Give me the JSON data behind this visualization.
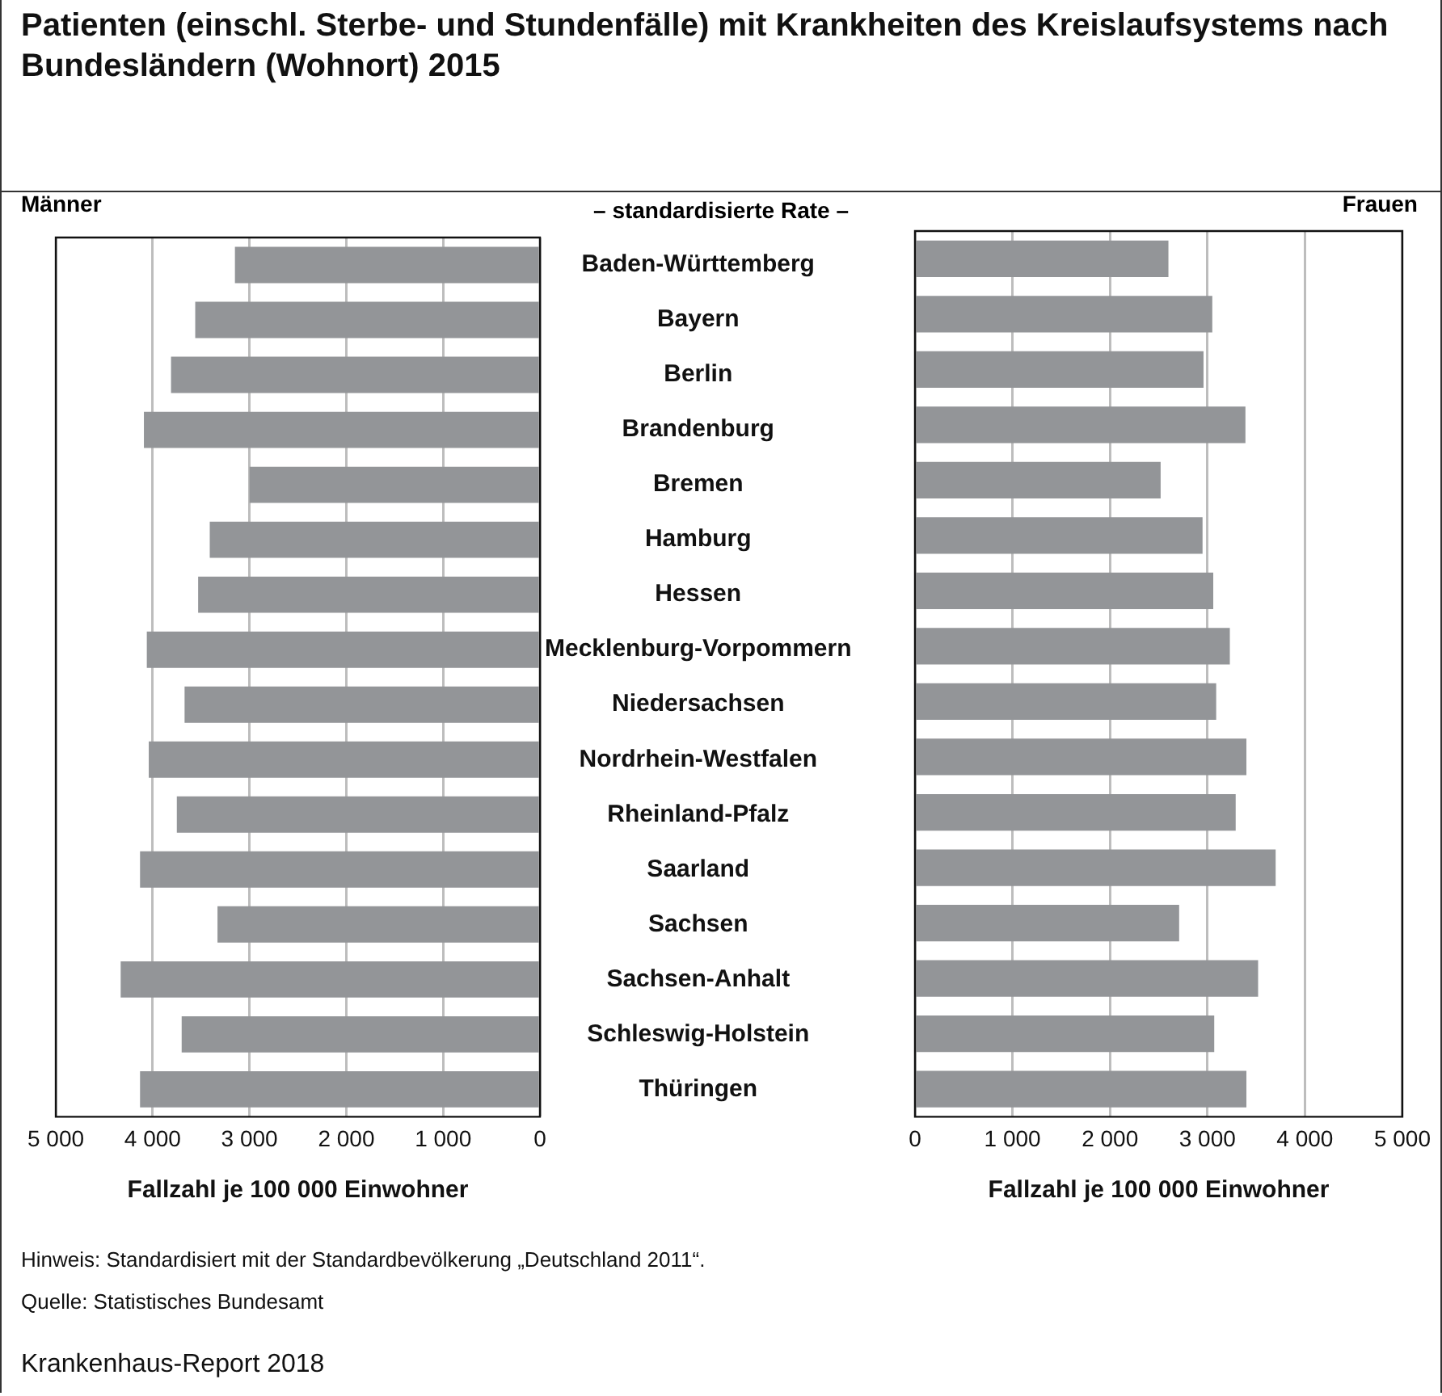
{
  "chart_data": [
    {
      "type": "bar",
      "orientation": "horizontal",
      "title": "Patienten (einschl. Sterbe- und Stundenfälle) mit Krankheiten des Kreislaufsystems nach Bundesländern (Wohnort) 2015",
      "subtitle": "– standardisierte Rate –",
      "xlabel": "Fallzahl je 100 000 Einwohner",
      "categories": [
        "Baden-Württemberg",
        "Bayern",
        "Berlin",
        "Brandenburg",
        "Bremen",
        "Hamburg",
        "Hessen",
        "Mecklenburg-Vorpommern",
        "Niedersachsen",
        "Nordrhein-Westfalen",
        "Rheinland-Pfalz",
        "Saarland",
        "Sachsen",
        "Sachsen-Anhalt",
        "Schleswig-Holstein",
        "Thüringen"
      ],
      "series": [
        {
          "name": "Männer",
          "color": "#939598",
          "values": [
            3150,
            3560,
            3810,
            4090,
            3000,
            3410,
            3530,
            4060,
            3670,
            4040,
            3750,
            4130,
            3330,
            4330,
            3700,
            4130
          ]
        }
      ],
      "xlim": [
        5000,
        0
      ],
      "xticks": [
        {
          "value": 5000,
          "label": "5 000"
        },
        {
          "value": 4000,
          "label": "4 000"
        },
        {
          "value": 3000,
          "label": "3 000"
        },
        {
          "value": 2000,
          "label": "2 000"
        },
        {
          "value": 1000,
          "label": "1 000"
        },
        0
      ],
      "grid": "x",
      "legend": false,
      "annotations": [
        "Hinweis: Standardisiert mit der Standardbevölkerung „Deutschland 2011“.",
        "Quelle: Statistisches Bundesamt",
        "Krankenhaus-Report 2018"
      ]
    },
    {
      "type": "bar",
      "orientation": "horizontal",
      "xlabel": "Fallzahl je 100 000 Einwohner",
      "series": [
        {
          "name": "Frauen",
          "color": "#939598",
          "values": [
            2600,
            3050,
            2960,
            3390,
            2520,
            2950,
            3060,
            3230,
            3090,
            3400,
            3290,
            3700,
            2710,
            3520,
            3070,
            3400
          ]
        }
      ],
      "xlim": [
        0,
        5000
      ],
      "xticks": [
        0,
        {
          "value": 1000,
          "label": "1 000"
        },
        {
          "value": 2000,
          "label": "2 000"
        },
        {
          "value": 3000,
          "label": "3 000"
        },
        {
          "value": 4000,
          "label": "4 000"
        },
        {
          "value": 5000,
          "label": "5 000"
        }
      ],
      "grid": "x",
      "legend": false,
      "tick_labels": "x"
    }
  ]
}
